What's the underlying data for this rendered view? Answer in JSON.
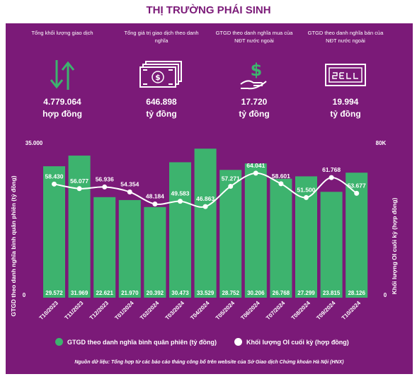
{
  "title": "THỊ TRƯỜNG PHÁI SINH",
  "stats": [
    {
      "label": "Tổng khối lượng giao dịch",
      "value": "4.779.064",
      "unit": "hợp đồng",
      "icon": "up-down-arrows-icon"
    },
    {
      "label": "Tổng giá trị giao dịch theo danh nghĩa",
      "value": "646.898",
      "unit": "tỷ đồng",
      "icon": "banknotes-icon"
    },
    {
      "label": "GTGD theo danh nghĩa mua của NĐT nước ngoài",
      "value": "17.720",
      "unit": "tỷ đồng",
      "icon": "hand-dollar-icon"
    },
    {
      "label": "GTGD theo danh nghĩa bán của NĐT nước ngoài",
      "value": "19.994",
      "unit": "tỷ đồng",
      "icon": "sell-sign-icon"
    }
  ],
  "chart_data": {
    "type": "bar",
    "categories": [
      "T10/2023",
      "T11/2023",
      "T12/2023",
      "T01/2024",
      "T02/2024",
      "T03/2024",
      "T04/2024",
      "T05/2024",
      "T06/2024",
      "T07/2024",
      "T08/2024",
      "T09/2024",
      "T10/2024"
    ],
    "series": [
      {
        "name": "GTGD theo danh nghĩa bình quân phiên (tỷ đồng)",
        "type": "bar",
        "axis": "left",
        "color": "#3db36e",
        "values": [
          29572,
          31969,
          22621,
          21970,
          20392,
          30473,
          33529,
          28752,
          30206,
          26768,
          27299,
          23815,
          28126
        ],
        "labels": [
          "29.572",
          "31.969",
          "22.621",
          "21.970",
          "20.392",
          "30.473",
          "33.529",
          "28.752",
          "30.206",
          "26.768",
          "27.299",
          "23.815",
          "28.126"
        ]
      },
      {
        "name": "Khối lượng OI cuối kỳ (hợp đồng)",
        "type": "line",
        "axis": "right",
        "color": "#ffffff",
        "values": [
          58430,
          56077,
          56936,
          54354,
          48184,
          49583,
          46863,
          57271,
          64041,
          58601,
          51500,
          61768,
          53677
        ],
        "labels": [
          "58.430",
          "56.077",
          "56.936",
          "54.354",
          "48.184",
          "49.583",
          "46.863",
          "57.271",
          "64.041",
          "58.601",
          "51.500",
          "61.768",
          "53.677"
        ]
      }
    ],
    "ylabel": "GTGD theo danh nghĩa bình quân phiên (tỷ đồng)",
    "y2label": "Khối lượng OI cuối kỳ (hợp đồng)",
    "ylim": [
      0,
      35000
    ],
    "y2lim": [
      0,
      80000
    ],
    "yticks": [
      "0",
      "35.000"
    ],
    "y2ticks": [
      "0",
      "80K"
    ],
    "legend_position": "bottom"
  },
  "source": "Nguồn dữ liệu: Tổng hợp từ các báo cáo tháng công bố trên website của Sở Giao dịch Chứng khoán Hà Nội (HNX)"
}
